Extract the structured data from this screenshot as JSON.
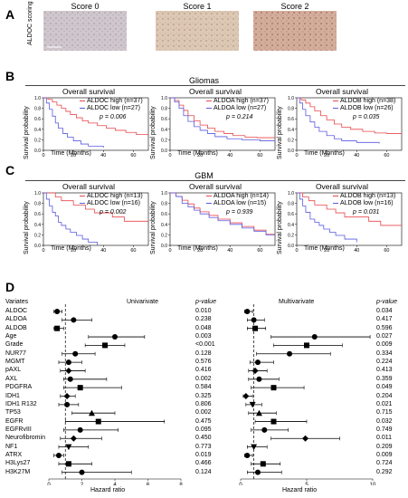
{
  "panelA": {
    "letter": "A",
    "row_label": "ALDOC scoring",
    "images": [
      {
        "title": "Score 0",
        "color": "#c9c2c6"
      },
      {
        "title": "Score 1",
        "color": "#d8c2ae"
      },
      {
        "title": "Score 2",
        "color": "#cfa795"
      }
    ]
  },
  "panelB": {
    "letter": "B",
    "section_title": "Gliomas",
    "charts": [
      {
        "title": "Overall survival",
        "legend_high": "ALDOC high (n=37)",
        "legend_low": "ALDOC low (n=27)",
        "p": "p = 0.006"
      },
      {
        "title": "Overall survival",
        "legend_high": "ALDOA high (n=37)",
        "legend_low": "ALDOA low (n=27)",
        "p": "p = 0.214"
      },
      {
        "title": "Overall survival",
        "legend_high": "ALDOB high (n=38)",
        "legend_low": "ALDOB low (n=26)",
        "p": "p = 0.035"
      }
    ]
  },
  "panelC": {
    "letter": "C",
    "section_title": "GBM",
    "charts": [
      {
        "title": "Overall survival",
        "legend_high": "ALDOC high (n=13)",
        "legend_low": "ALDOC low (n=16)",
        "p": "p = 0.002"
      },
      {
        "title": "Overall survival",
        "legend_high": "ALDOA high (n=14)",
        "legend_low": "ALDOA low (n=15)",
        "p": "p = 0.939"
      },
      {
        "title": "Overall survival",
        "legend_high": "ALDOB high (n=13)",
        "legend_low": "ALDOB low (n=16)",
        "p": "p = 0.031"
      }
    ]
  },
  "km_common": {
    "ylabel": "Survival probability",
    "xlabel": "Time (Months)",
    "yticks": [
      "0.0",
      "0.2",
      "0.4",
      "0.6",
      "0.8",
      "1.0"
    ],
    "xticks": [
      "0",
      "20",
      "40",
      "60"
    ],
    "high_color": "#e8474c",
    "low_color": "#5a5ae0"
  },
  "panelD": {
    "letter": "D",
    "variates_header": "Variates",
    "uni_title": "Univarivate",
    "multi_title": "Multivarivate",
    "pvalue_header": "p-value",
    "xlabel": "Hazard ratio",
    "uni_xticks": [
      "0",
      "2",
      "4",
      "6",
      "8"
    ],
    "multi_xticks": [
      "0",
      "5",
      "10"
    ],
    "variates": [
      "ALDOC",
      "ALDOA",
      "ALDOB",
      "Age",
      "Grade",
      "NUR77",
      "MGMT",
      "pAXL",
      "AXL",
      "PDGFRA",
      "IDH1",
      "IDH1 R132",
      "TP53",
      "EGFR",
      "EGFRvIII",
      "Neurofibromin",
      "NF1",
      "ATRX",
      "H3Lys27",
      "H3K27M"
    ],
    "uni_p": [
      "0.010",
      "0.238",
      "0.048",
      "0.003",
      "<0.001",
      "0.128",
      "0.576",
      "0.416",
      "0.002",
      "0.584",
      "0.325",
      "0.806",
      "0.002",
      "0.475",
      "0.095",
      "0.450",
      "0.773",
      "0.019",
      "0.466",
      "0.124"
    ],
    "multi_p": [
      "0.034",
      "0.417",
      "0.596",
      "0.027",
      "0.009",
      "0.334",
      "0.224",
      "0.413",
      "0.359",
      "0.049",
      "0.204",
      "0.021",
      "0.715",
      "0.032",
      "0.749",
      "0.011",
      "0.209",
      "0.009",
      "0.724",
      "0.292"
    ]
  },
  "chart_data": [
    {
      "type": "line",
      "title": "Overall survival",
      "panel": "B-ALDOC",
      "xlabel": "Time (Months)",
      "ylabel": "Survival probability",
      "xlim": [
        0,
        70
      ],
      "ylim": [
        0,
        1
      ],
      "series": [
        {
          "name": "ALDOC high (n=37)",
          "x": [
            0,
            3,
            6,
            9,
            12,
            15,
            18,
            22,
            26,
            30,
            36,
            42,
            48,
            55,
            62,
            70
          ],
          "y": [
            1,
            0.97,
            0.92,
            0.86,
            0.8,
            0.74,
            0.68,
            0.62,
            0.56,
            0.52,
            0.47,
            0.42,
            0.38,
            0.34,
            0.3,
            0.3
          ]
        },
        {
          "name": "ALDOC low (n=27)",
          "x": [
            0,
            2,
            4,
            6,
            8,
            10,
            13,
            16,
            20,
            25,
            30,
            40
          ],
          "y": [
            1,
            0.9,
            0.78,
            0.65,
            0.52,
            0.42,
            0.32,
            0.25,
            0.18,
            0.12,
            0.08,
            0.05
          ]
        }
      ]
    },
    {
      "type": "line",
      "title": "Overall survival",
      "panel": "B-ALDOA",
      "xlabel": "Time (Months)",
      "ylabel": "Survival probability",
      "xlim": [
        0,
        70
      ],
      "ylim": [
        0,
        1
      ],
      "series": [
        {
          "name": "ALDOA high (n=37)",
          "x": [
            0,
            3,
            6,
            9,
            12,
            16,
            20,
            25,
            30,
            36,
            42,
            50,
            58,
            66,
            70
          ],
          "y": [
            1,
            0.95,
            0.86,
            0.76,
            0.66,
            0.56,
            0.48,
            0.42,
            0.36,
            0.32,
            0.28,
            0.25,
            0.24,
            0.24,
            0.24
          ]
        },
        {
          "name": "ALDOA low (n=27)",
          "x": [
            0,
            3,
            6,
            9,
            12,
            16,
            20,
            25,
            30,
            38,
            48,
            60,
            70
          ],
          "y": [
            1,
            0.92,
            0.8,
            0.66,
            0.55,
            0.45,
            0.38,
            0.32,
            0.26,
            0.22,
            0.2,
            0.18,
            0.18
          ]
        }
      ]
    },
    {
      "type": "line",
      "title": "Overall survival",
      "panel": "B-ALDOB",
      "xlabel": "Time (Months)",
      "ylabel": "Survival probability",
      "xlim": [
        0,
        70
      ],
      "ylim": [
        0,
        1
      ],
      "series": [
        {
          "name": "ALDOB high (n=38)",
          "x": [
            0,
            3,
            6,
            9,
            12,
            16,
            20,
            25,
            30,
            36,
            44,
            52,
            60,
            70
          ],
          "y": [
            1,
            0.96,
            0.9,
            0.83,
            0.75,
            0.66,
            0.58,
            0.5,
            0.44,
            0.4,
            0.36,
            0.33,
            0.32,
            0.32
          ]
        },
        {
          "name": "ALDOB low (n=26)",
          "x": [
            0,
            2,
            4,
            6,
            9,
            12,
            15,
            20,
            25,
            30,
            40,
            55
          ],
          "y": [
            1,
            0.9,
            0.78,
            0.66,
            0.54,
            0.44,
            0.36,
            0.28,
            0.22,
            0.18,
            0.15,
            0.13
          ]
        }
      ]
    },
    {
      "type": "line",
      "title": "Overall survival",
      "panel": "C-ALDOC",
      "xlabel": "Time (Months)",
      "ylabel": "Survival probability",
      "xlim": [
        0,
        70
      ],
      "ylim": [
        0,
        1
      ],
      "series": [
        {
          "name": "ALDOC high (n=13)",
          "x": [
            0,
            4,
            8,
            12,
            16,
            20,
            24,
            28,
            34,
            40,
            46,
            54,
            62,
            70
          ],
          "y": [
            1,
            1,
            0.92,
            0.85,
            0.85,
            0.77,
            0.77,
            0.69,
            0.62,
            0.62,
            0.54,
            0.46,
            0.46,
            0.46
          ]
        },
        {
          "name": "ALDOC low (n=16)",
          "x": [
            0,
            2,
            4,
            6,
            8,
            10,
            12,
            15,
            18,
            22,
            26,
            30,
            36
          ],
          "y": [
            1,
            0.88,
            0.75,
            0.63,
            0.56,
            0.44,
            0.38,
            0.31,
            0.25,
            0.19,
            0.12,
            0.06,
            0
          ]
        }
      ]
    },
    {
      "type": "line",
      "title": "Overall survival",
      "panel": "C-ALDOA",
      "xlabel": "Time (Months)",
      "ylabel": "Survival probability",
      "xlim": [
        0,
        70
      ],
      "ylim": [
        0,
        1
      ],
      "series": [
        {
          "name": "ALDOA high (n=14)",
          "x": [
            0,
            4,
            8,
            12,
            16,
            20,
            26,
            32,
            40,
            48,
            56,
            64,
            70
          ],
          "y": [
            1,
            0.93,
            0.86,
            0.79,
            0.71,
            0.64,
            0.57,
            0.5,
            0.43,
            0.36,
            0.29,
            0.21,
            0.21
          ]
        },
        {
          "name": "ALDOA low (n=15)",
          "x": [
            0,
            4,
            8,
            12,
            16,
            20,
            26,
            32,
            40,
            48,
            56,
            64,
            70
          ],
          "y": [
            1,
            0.93,
            0.8,
            0.73,
            0.67,
            0.6,
            0.53,
            0.47,
            0.4,
            0.33,
            0.27,
            0.2,
            0.2
          ]
        }
      ]
    },
    {
      "type": "line",
      "title": "Overall survival",
      "panel": "C-ALDOB",
      "xlabel": "Time (Months)",
      "ylabel": "Survival probability",
      "xlim": [
        0,
        70
      ],
      "ylim": [
        0,
        1
      ],
      "series": [
        {
          "name": "ALDOB high (n=13)",
          "x": [
            0,
            4,
            8,
            12,
            16,
            20,
            26,
            32,
            40,
            48,
            56,
            64,
            70
          ],
          "y": [
            1,
            0.92,
            0.85,
            0.77,
            0.77,
            0.69,
            0.62,
            0.54,
            0.54,
            0.46,
            0.38,
            0.38,
            0.38
          ]
        },
        {
          "name": "ALDOB low (n=16)",
          "x": [
            0,
            2,
            4,
            6,
            9,
            12,
            15,
            18,
            22,
            26,
            32,
            40
          ],
          "y": [
            1,
            0.88,
            0.75,
            0.63,
            0.5,
            0.44,
            0.38,
            0.31,
            0.25,
            0.19,
            0.12,
            0.06
          ]
        }
      ]
    },
    {
      "type": "scatter",
      "title": "Univarivate",
      "xlabel": "Hazard ratio",
      "xlim": [
        0,
        8
      ],
      "categories": [
        "ALDOC",
        "ALDOA",
        "ALDOB",
        "Age",
        "Grade",
        "NUR77",
        "MGMT",
        "pAXL",
        "AXL",
        "PDGFRA",
        "IDH1",
        "IDH1 R132",
        "TP53",
        "EGFR",
        "EGFRvIII",
        "Neurofibromin",
        "NF1",
        "ATRX",
        "H3Lys27",
        "H3K27M"
      ],
      "hr": [
        0.5,
        1.5,
        0.5,
        4.0,
        3.4,
        1.6,
        1.2,
        1.2,
        1.3,
        1.9,
        1.1,
        1.1,
        2.6,
        3.0,
        1.9,
        1.5,
        1.2,
        0.6,
        1.2,
        2.0
      ],
      "lower": [
        0.3,
        0.8,
        0.3,
        2.4,
        2.2,
        0.8,
        0.6,
        0.7,
        0.9,
        0.9,
        0.7,
        0.6,
        1.4,
        1.0,
        0.9,
        0.7,
        0.6,
        0.3,
        0.6,
        0.8
      ],
      "upper": [
        0.8,
        2.6,
        0.9,
        5.8,
        4.6,
        2.8,
        2.0,
        2.2,
        3.5,
        4.4,
        1.6,
        1.8,
        4.0,
        7.0,
        4.2,
        3.2,
        2.4,
        0.9,
        2.6,
        5.0
      ]
    },
    {
      "type": "scatter",
      "title": "Multivarivate",
      "xlabel": "Hazard ratio",
      "xlim": [
        0,
        10
      ],
      "categories": [
        "ALDOC",
        "ALDOA",
        "ALDOB",
        "Age",
        "Grade",
        "NUR77",
        "MGMT",
        "pAXL",
        "AXL",
        "PDGFRA",
        "IDH1",
        "IDH1 R132",
        "TP53",
        "EGFR",
        "EGFRvIII",
        "Neurofibromin",
        "NF1",
        "ATRX",
        "H3Lys27",
        "H3K27M"
      ],
      "hr": [
        0.5,
        1.0,
        1.1,
        5.6,
        5.0,
        3.7,
        1.3,
        1.1,
        1.4,
        2.5,
        0.4,
        0.9,
        1.4,
        2.5,
        1.8,
        4.9,
        1.0,
        0.5,
        1.7,
        1.3
      ],
      "lower": [
        0.3,
        0.5,
        0.5,
        2.3,
        2.5,
        1.2,
        0.7,
        0.6,
        0.6,
        0.8,
        0.2,
        0.4,
        0.6,
        1.1,
        0.8,
        2.3,
        0.5,
        0.3,
        0.8,
        0.5
      ],
      "upper": [
        0.9,
        1.8,
        1.9,
        9.8,
        7.7,
        6.8,
        2.5,
        2.0,
        2.9,
        4.8,
        0.9,
        1.6,
        2.7,
        5.0,
        3.6,
        7.5,
        2.0,
        0.9,
        3.0,
        3.1
      ]
    }
  ]
}
